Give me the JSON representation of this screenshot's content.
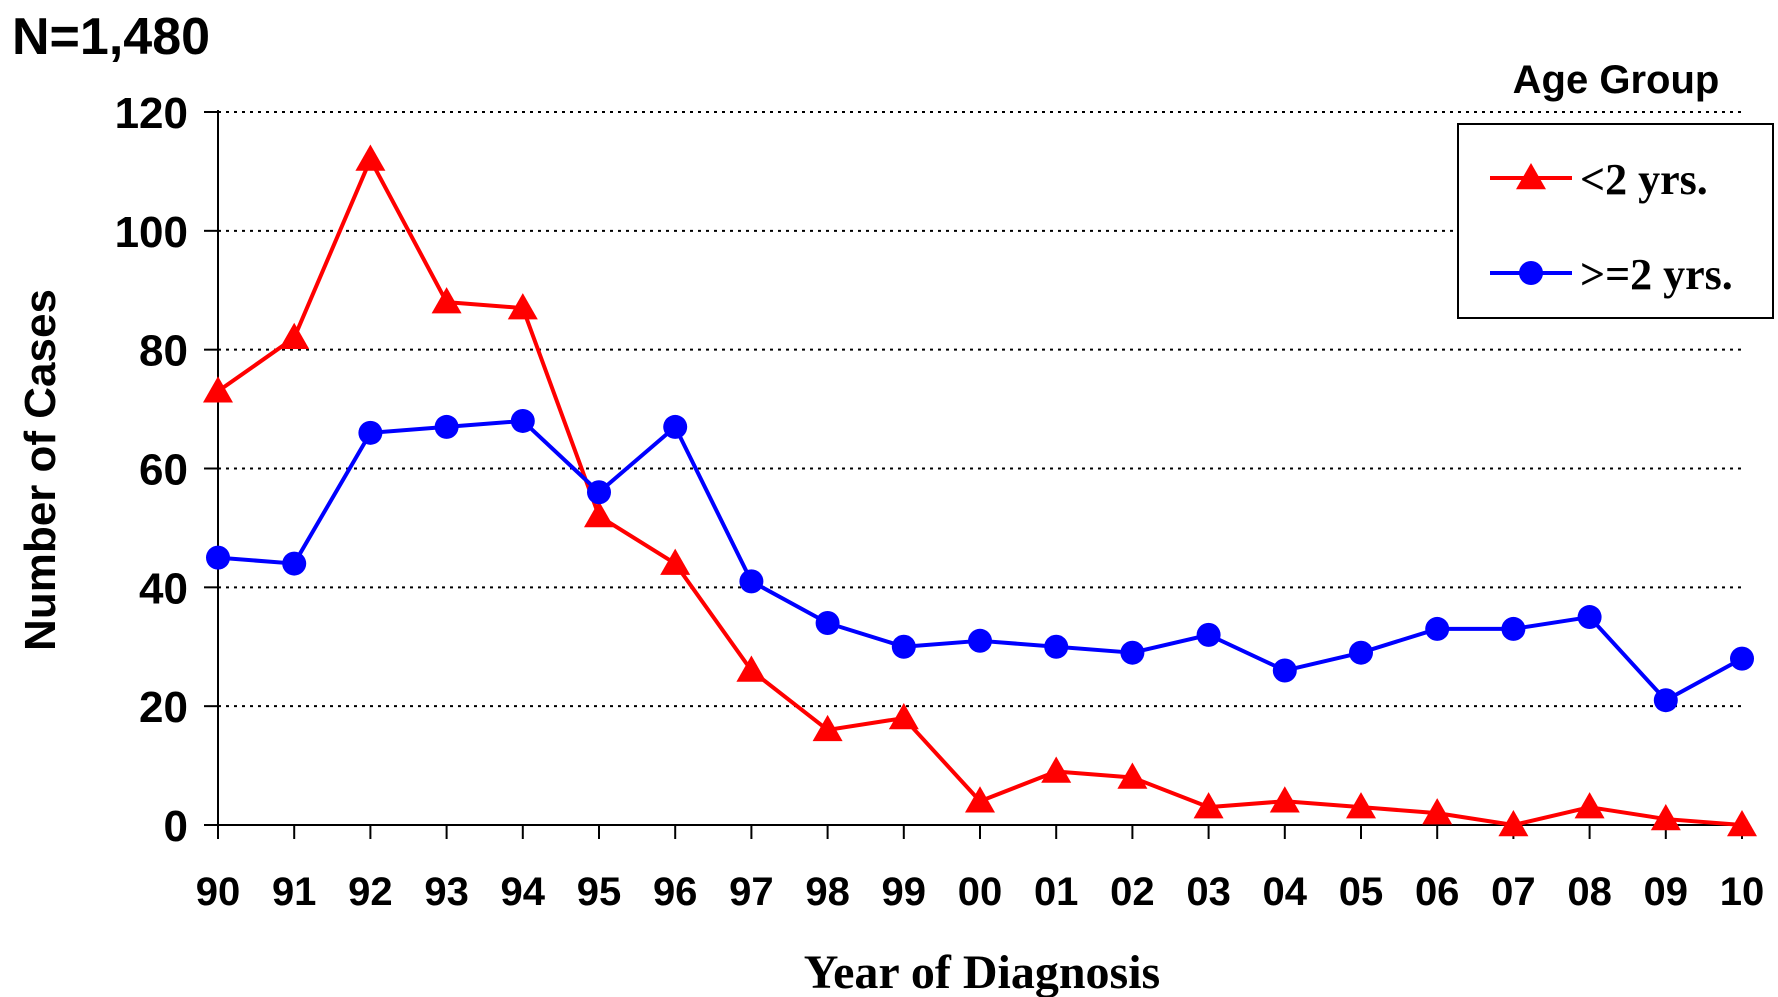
{
  "chart_data": {
    "type": "line",
    "title": "",
    "annotation": "N=1,480",
    "xlabel": "Year of Diagnosis",
    "ylabel": "Number of Cases",
    "categories": [
      "90",
      "91",
      "92",
      "93",
      "94",
      "95",
      "96",
      "97",
      "98",
      "99",
      "00",
      "01",
      "02",
      "03",
      "04",
      "05",
      "06",
      "07",
      "08",
      "09",
      "10"
    ],
    "ylim": [
      0,
      120
    ],
    "yticks": [
      "0",
      "20",
      "40",
      "60",
      "80",
      "100",
      "120"
    ],
    "grid": "horizontal dotted",
    "legend": {
      "title": "Age Group",
      "placement": "top-right"
    },
    "series": [
      {
        "name": "<2 yrs.",
        "color": "#ff0000",
        "marker": "triangle",
        "values": [
          73,
          82,
          112,
          88,
          87,
          52,
          44,
          26,
          16,
          18,
          4,
          9,
          8,
          3,
          4,
          3,
          2,
          0,
          3,
          1,
          0
        ]
      },
      {
        "name": ">=2 yrs.",
        "color": "#0000ff",
        "marker": "circle",
        "values": [
          45,
          44,
          66,
          67,
          68,
          56,
          67,
          41,
          34,
          30,
          31,
          30,
          29,
          32,
          26,
          29,
          33,
          33,
          35,
          21,
          28
        ]
      }
    ]
  }
}
